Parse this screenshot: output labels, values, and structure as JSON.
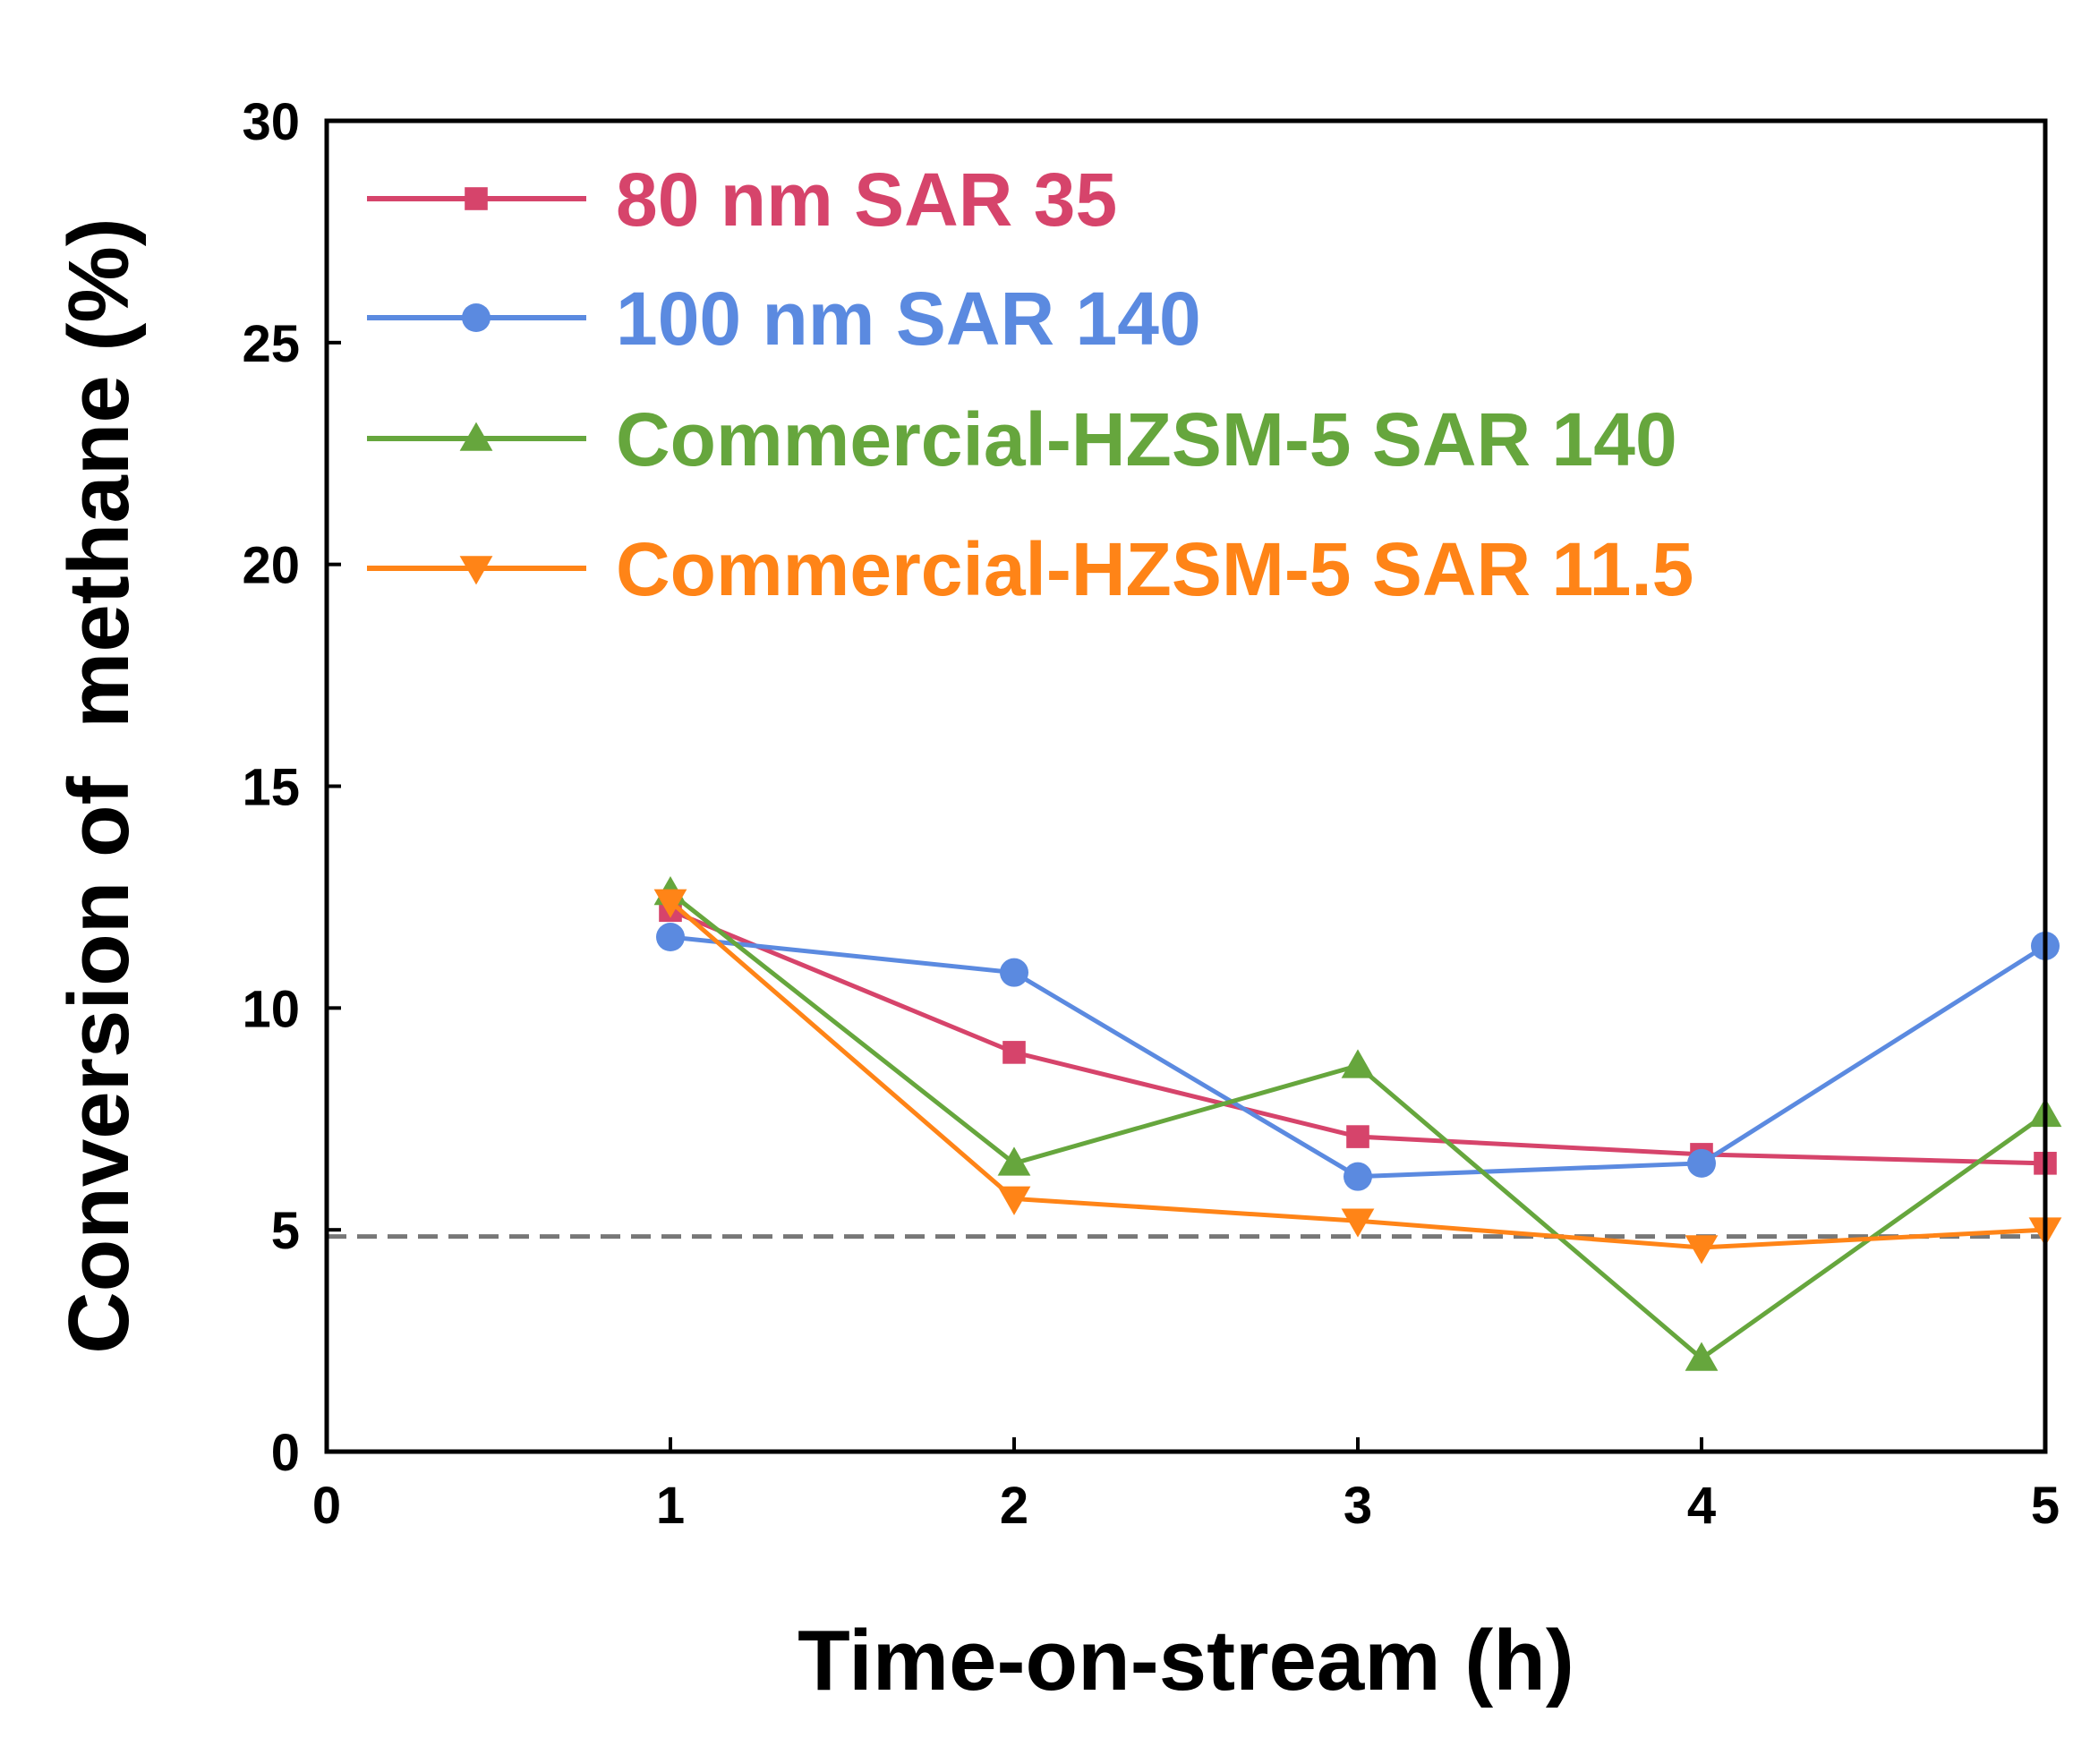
{
  "chart_data": {
    "type": "line",
    "title": "",
    "xlabel": "Time-on-stream (h)",
    "ylabel": "Conversion of  methane (%)",
    "xlim": [
      0,
      5
    ],
    "ylim": [
      0,
      30
    ],
    "xticks": [
      0,
      1,
      2,
      3,
      4,
      5
    ],
    "yticks": [
      0,
      5,
      10,
      15,
      20,
      25,
      30
    ],
    "xtick_labels": [
      "0",
      "1",
      "2",
      "3",
      "4",
      "5"
    ],
    "ytick_labels": [
      "0",
      "5",
      "10",
      "15",
      "20",
      "25",
      "30"
    ],
    "grid": false,
    "legend_position": "top-left",
    "x": [
      1,
      2,
      3,
      4,
      5
    ],
    "series": [
      {
        "name": "80 nm SAR 35",
        "color": "#d6446b",
        "marker": "square",
        "values": [
          12.2,
          9.0,
          7.1,
          6.7,
          6.5
        ]
      },
      {
        "name": "100 nm SAR 140",
        "color": "#5b8ae0",
        "marker": "circle",
        "values": [
          11.6,
          10.8,
          6.2,
          6.5,
          11.4
        ]
      },
      {
        "name": "Commercial-HZSM-5 SAR 140",
        "color": "#66a63d",
        "marker": "triangle-up",
        "values": [
          12.6,
          6.5,
          8.7,
          2.1,
          7.6
        ]
      },
      {
        "name": "Commercial-HZSM-5 SAR 11.5",
        "color": "#ff8417",
        "marker": "triangle-down",
        "values": [
          12.4,
          5.7,
          5.2,
          4.6,
          5.0
        ]
      }
    ],
    "reference_line": {
      "y": 4.85,
      "style": "dashed",
      "color": "#777777"
    }
  }
}
